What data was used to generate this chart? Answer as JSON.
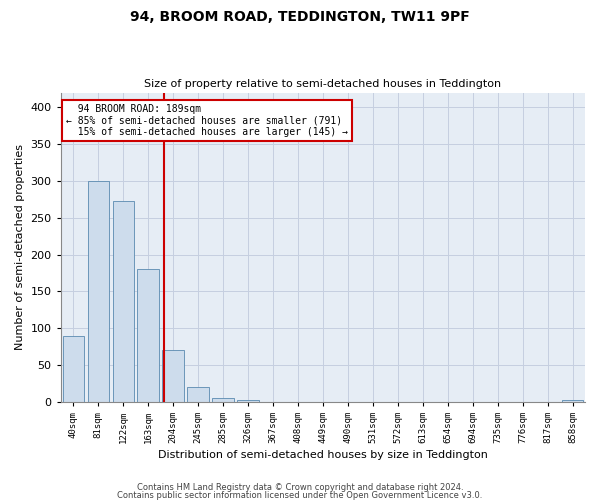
{
  "title1": "94, BROOM ROAD, TEDDINGTON, TW11 9PF",
  "title2": "Size of property relative to semi-detached houses in Teddington",
  "xlabel": "Distribution of semi-detached houses by size in Teddington",
  "ylabel": "Number of semi-detached properties",
  "categories": [
    "40sqm",
    "81sqm",
    "122sqm",
    "163sqm",
    "204sqm",
    "245sqm",
    "285sqm",
    "326sqm",
    "367sqm",
    "408sqm",
    "449sqm",
    "490sqm",
    "531sqm",
    "572sqm",
    "613sqm",
    "654sqm",
    "694sqm",
    "735sqm",
    "776sqm",
    "817sqm",
    "858sqm"
  ],
  "values": [
    90,
    300,
    273,
    180,
    70,
    20,
    5,
    2,
    0,
    0,
    0,
    0,
    0,
    0,
    0,
    0,
    0,
    0,
    0,
    0,
    2
  ],
  "bar_color": "#cddcec",
  "bar_edge_color": "#5a8ab0",
  "annotation_box_color": "#cc0000",
  "grid_color": "#c5cfe0",
  "bg_color": "#e6edf5",
  "ylim": [
    0,
    420
  ],
  "yticks": [
    0,
    50,
    100,
    150,
    200,
    250,
    300,
    350,
    400
  ],
  "smaller_pct": 85,
  "smaller_count": 791,
  "larger_pct": 15,
  "larger_count": 145,
  "prop_bin_index": 4,
  "footer1": "Contains HM Land Registry data © Crown copyright and database right 2024.",
  "footer2": "Contains public sector information licensed under the Open Government Licence v3.0."
}
